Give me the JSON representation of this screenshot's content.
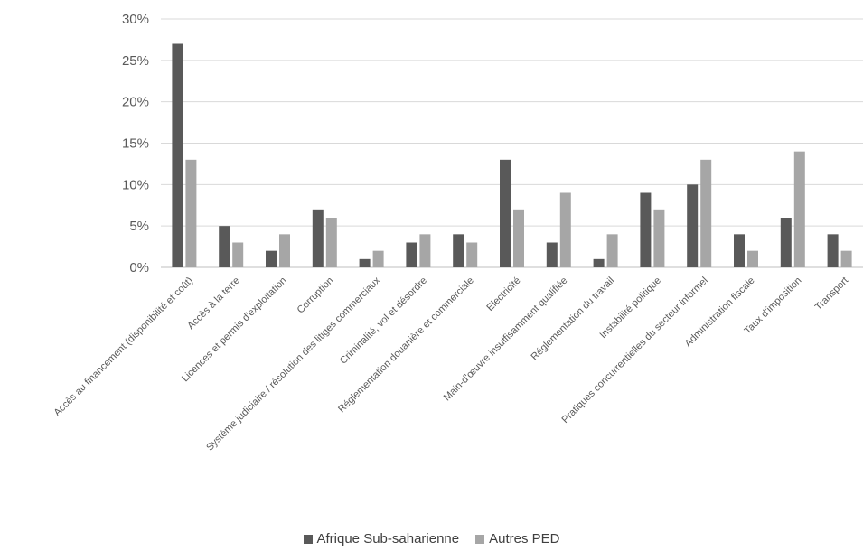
{
  "chart_data": {
    "type": "bar",
    "categories": [
      "Accès au financement (disponibilité et coût)",
      "Accès à la terre",
      "Licences et permis d'exploitation",
      "Corruption",
      "Système judiciaire / résolution des litiges commerciaux",
      "Criminalité, vol et désordre",
      "Réglementation douanière et commerciale",
      "Electricité",
      "Main-d'œuvre insuffisamment qualifiée",
      "Réglementation du travail",
      "Instabilité politique",
      "Pratiques concurrentielles du secteur informel",
      "Administration fiscale",
      "Taux d'imposition",
      "Transport"
    ],
    "series": [
      {
        "name": "Afrique Sub-saharienne",
        "color": "#595959",
        "values": [
          27,
          5,
          2,
          7,
          1,
          3,
          4,
          13,
          3,
          1,
          9,
          10,
          4,
          6,
          4
        ]
      },
      {
        "name": "Autres PED",
        "color": "#a6a6a6",
        "values": [
          13,
          3,
          4,
          6,
          2,
          4,
          3,
          7,
          9,
          4,
          7,
          13,
          2,
          14,
          2
        ]
      }
    ],
    "yticks": [
      "0%",
      "5%",
      "10%",
      "15%",
      "20%",
      "25%",
      "30%"
    ],
    "ylim": [
      0,
      30
    ],
    "grid": true,
    "legend_position": "bottom"
  }
}
